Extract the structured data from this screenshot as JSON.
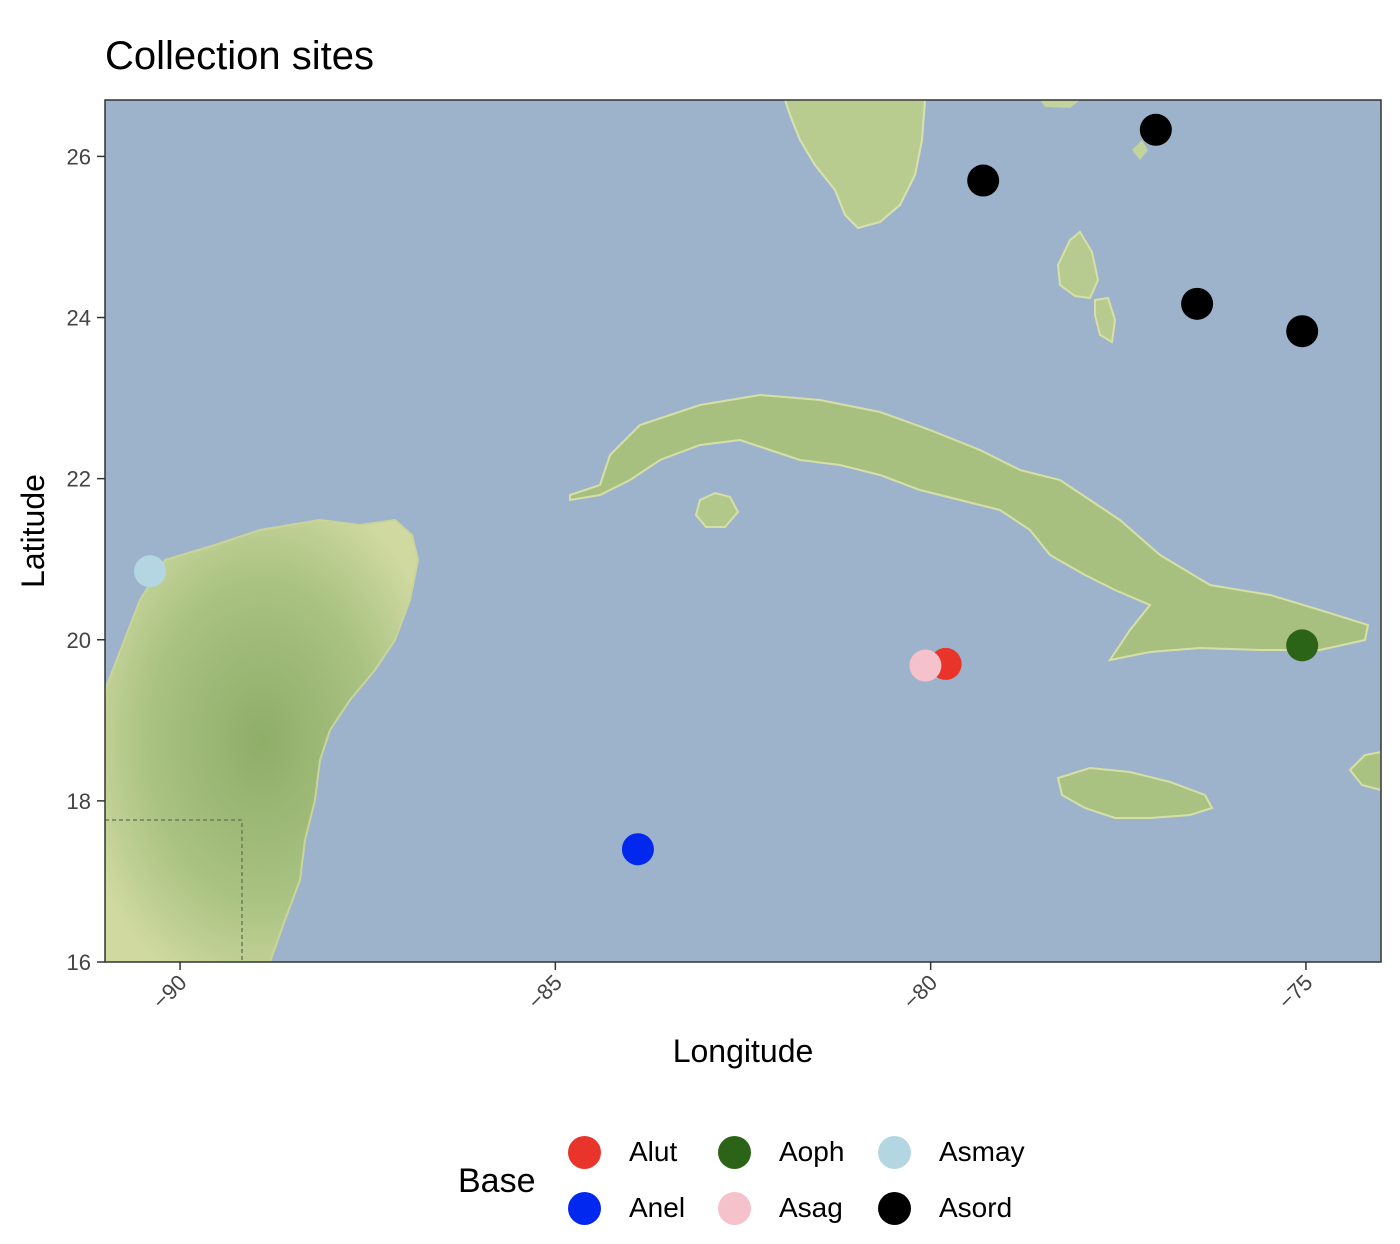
{
  "title": "Collection sites",
  "chart_data": {
    "type": "scatter",
    "title": "Collection sites",
    "xlabel": "Longitude",
    "ylabel": "Latitude",
    "xlim": [
      -91,
      -74.0
    ],
    "ylim": [
      16,
      26.7
    ],
    "x_ticks": [
      -90,
      -85,
      -80,
      -75
    ],
    "x_tick_labels": [
      "−90",
      "−85",
      "−80",
      "−75"
    ],
    "y_ticks": [
      16,
      18,
      20,
      22,
      24,
      26
    ],
    "y_tick_labels": [
      "16",
      "18",
      "20",
      "22",
      "24",
      "26"
    ],
    "legend_title": "Base",
    "legend_position": "bottom",
    "series": [
      {
        "name": "Alut",
        "color": "#e8342a",
        "points": [
          {
            "x": -79.8,
            "y": 19.7
          }
        ]
      },
      {
        "name": "Aoph",
        "color": "#2b6416",
        "points": [
          {
            "x": -75.05,
            "y": 19.93
          }
        ]
      },
      {
        "name": "Asmay",
        "color": "#b4d6e3",
        "points": [
          {
            "x": -90.4,
            "y": 20.85
          }
        ]
      },
      {
        "name": "Anel",
        "color": "#0228ef",
        "points": [
          {
            "x": -83.9,
            "y": 17.4
          }
        ]
      },
      {
        "name": "Asag",
        "color": "#f5c1cb",
        "points": [
          {
            "x": -80.07,
            "y": 19.68
          }
        ]
      },
      {
        "name": "Asord",
        "color": "#000000",
        "points": [
          {
            "x": -79.3,
            "y": 25.7
          },
          {
            "x": -77.0,
            "y": 26.33
          },
          {
            "x": -76.45,
            "y": 24.17
          },
          {
            "x": -75.05,
            "y": 23.83
          }
        ]
      }
    ]
  },
  "legend_order": [
    "Alut",
    "Aoph",
    "Asmay",
    "Anel",
    "Asag",
    "Asord"
  ],
  "colors": {
    "ocean": "#9db3cb",
    "land": "#a3bc7c",
    "land_light": "#d6dfa6",
    "land_dark": "#7f9e5c"
  }
}
